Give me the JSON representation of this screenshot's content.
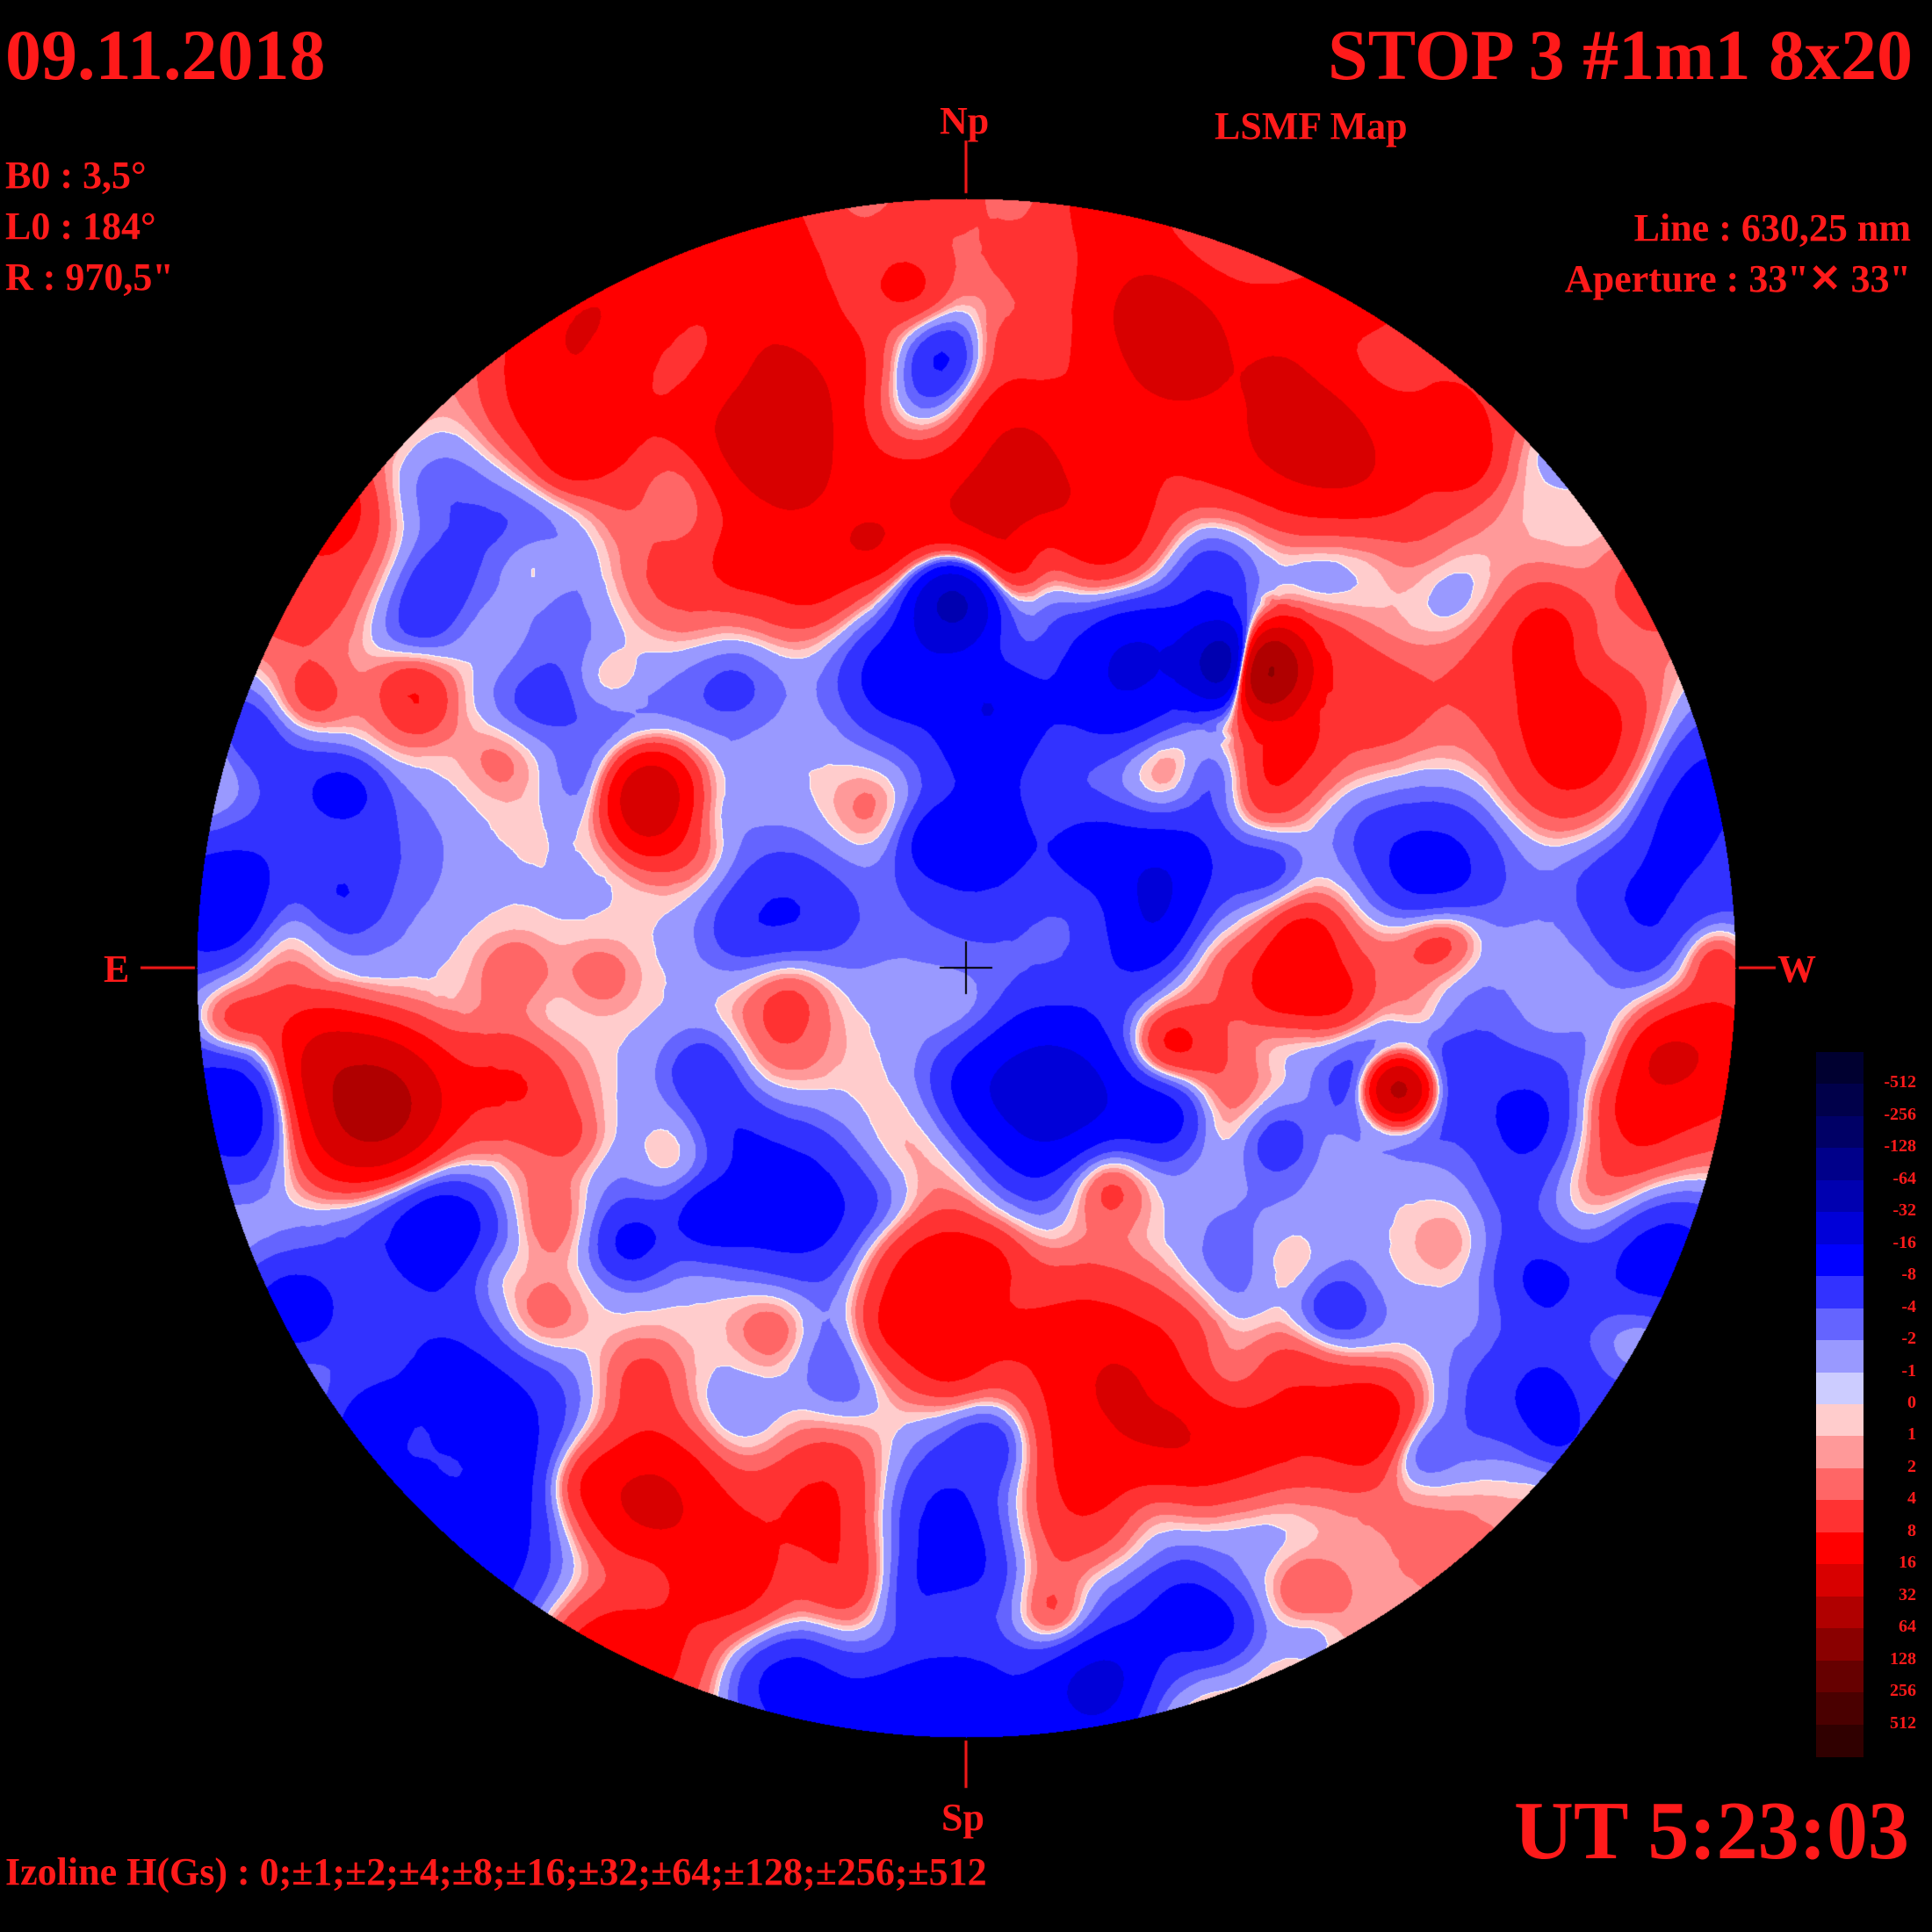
{
  "header": {
    "date": "09.11.2018",
    "title": "STOP 3 #1m1 8x20",
    "subtitle": "LSMF  Map"
  },
  "params": {
    "b0": "B0 : 3,5°",
    "l0": "L0 : 184°",
    "r": "R  : 970,5\""
  },
  "instrument": {
    "line": "Line :  630,25 nm",
    "aperture": "Aperture : 33\"✕ 33\""
  },
  "directions": {
    "north": "Np",
    "south": "Sp",
    "east": "E",
    "west": "W"
  },
  "footer": {
    "time": "UT 5:23:03",
    "izolines": "Izoline H(Gs) : 0;±1;±2;±4;±8;±16;±32;±64;±128;±256;±512"
  },
  "colorbar": {
    "labels": [
      "-512",
      "-256",
      "-128",
      "-64",
      "-32",
      "-16",
      "-8",
      "-4",
      "-2",
      "-1",
      "0",
      "1",
      "2",
      "4",
      "8",
      "16",
      "32",
      "64",
      "128",
      "256",
      "512"
    ],
    "colors": [
      "#000030",
      "#00004a",
      "#000066",
      "#00008a",
      "#0000b0",
      "#0000d8",
      "#0000ff",
      "#3232ff",
      "#6464ff",
      "#9999ff",
      "#ccccff",
      "#ffcccc",
      "#ff9999",
      "#ff6666",
      "#ff3232",
      "#ff0000",
      "#d80000",
      "#b00000",
      "#8a0000",
      "#660000",
      "#4a0000",
      "#300000"
    ]
  },
  "map": {
    "levels": [
      -512,
      -256,
      -128,
      -64,
      -32,
      -16,
      -8,
      -4,
      -2,
      -1,
      0,
      1,
      2,
      4,
      8,
      16,
      32,
      64,
      128,
      256,
      512
    ],
    "colors": [
      "#000030",
      "#00004a",
      "#000066",
      "#00008a",
      "#0000b0",
      "#0000d8",
      "#0000ff",
      "#3232ff",
      "#6464ff",
      "#9999ff",
      "#ccccff",
      "#ffcccc",
      "#ff9999",
      "#ff6666",
      "#ff3232",
      "#ff0000",
      "#d80000",
      "#b00000",
      "#8a0000",
      "#660000",
      "#4a0000",
      "#300000"
    ],
    "isoline_color": "#ffffff",
    "background": "#000000",
    "marker_color": "#000000"
  }
}
